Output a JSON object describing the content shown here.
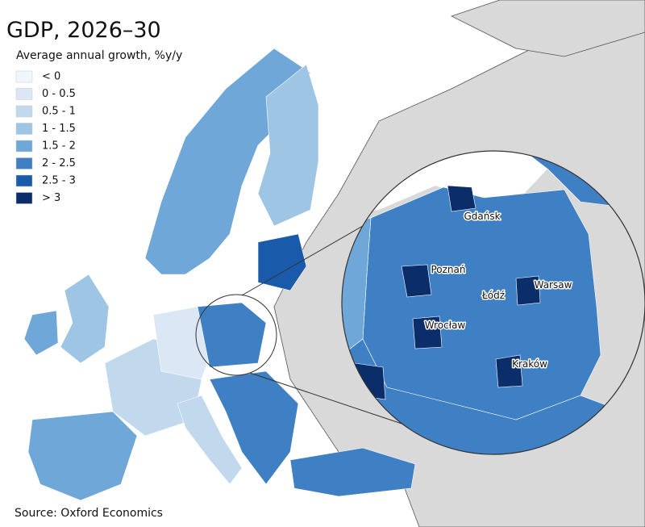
{
  "title": "GDP, 2026–30",
  "subtitle": "Average annual growth, %y/y",
  "legend": [
    {
      "label": "< 0",
      "color": "#f0f6fb"
    },
    {
      "label": "0 - 0.5",
      "color": "#dbe7f4"
    },
    {
      "label": "0.5 - 1",
      "color": "#c2d8ec"
    },
    {
      "label": "1 - 1.5",
      "color": "#9fc5e5"
    },
    {
      "label": "1.5 - 2",
      "color": "#6fa7d9"
    },
    {
      "label": "2 - 2.5",
      "color": "#3f80c4"
    },
    {
      "label": "2.5 - 3",
      "color": "#1a5aaa"
    },
    {
      "label": "> 3",
      "color": "#0b2e6b"
    }
  ],
  "cities": [
    "Gdańsk",
    "Poznań",
    "Łódź",
    "Warsaw",
    "Wrocław",
    "Kraków"
  ],
  "source": "Source: Oxford Economics"
}
